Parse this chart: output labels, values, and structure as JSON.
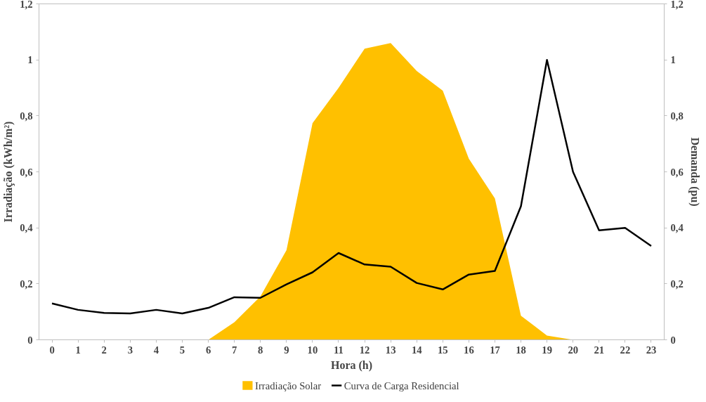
{
  "chart_data": {
    "type": "line",
    "xlabel": "Hora (h)",
    "ylabel": "Irradiação (kWh/m²)",
    "y2label": "Demanda (pu)",
    "x": [
      0,
      1,
      2,
      3,
      4,
      5,
      6,
      7,
      8,
      9,
      10,
      11,
      12,
      13,
      14,
      15,
      16,
      17,
      18,
      19,
      20,
      21,
      22,
      23
    ],
    "xlim": [
      -0.5,
      23.5
    ],
    "xticks": [
      0,
      1,
      2,
      3,
      4,
      5,
      6,
      7,
      8,
      9,
      10,
      11,
      12,
      13,
      14,
      15,
      16,
      17,
      18,
      19,
      20,
      21,
      22,
      23
    ],
    "ylim": [
      0,
      1.2
    ],
    "yticks": [
      0,
      {
        "value": 0.2,
        "label": "0,2"
      },
      {
        "value": 0.4,
        "label": "0,4"
      },
      {
        "value": 0.6,
        "label": "0,6"
      },
      {
        "value": 0.8,
        "label": "0,8"
      },
      1,
      {
        "value": 1.2,
        "label": "1,2"
      }
    ],
    "y2lim": [
      0,
      1.2
    ],
    "y2ticks": [
      0,
      {
        "value": 0.2,
        "label": "0,2"
      },
      {
        "value": 0.4,
        "label": "0,4"
      },
      {
        "value": 0.6,
        "label": "0,6"
      },
      {
        "value": 0.8,
        "label": "0,8"
      },
      1,
      {
        "value": 1.2,
        "label": "1,2"
      }
    ],
    "grid": false,
    "legend": "bottom",
    "series": [
      {
        "name": "Irradiação Solar",
        "type": "area",
        "color": "#ffc000",
        "values": [
          0,
          0,
          0,
          0,
          0,
          0,
          0,
          0.063,
          0.155,
          0.32,
          0.774,
          0.9,
          1.04,
          1.06,
          0.96,
          0.89,
          0.647,
          0.505,
          0.086,
          0.015,
          0,
          0,
          0,
          0
        ]
      },
      {
        "name": "Curva de Carga Residencial",
        "type": "line",
        "axis": "y2",
        "color": "#000000",
        "values": [
          0.13,
          0.107,
          0.096,
          0.094,
          0.107,
          0.094,
          0.114,
          0.152,
          0.15,
          0.198,
          0.241,
          0.31,
          0.269,
          0.261,
          0.203,
          0.18,
          0.233,
          0.246,
          0.477,
          1.0,
          0.6,
          0.391,
          0.4,
          0.335
        ]
      }
    ]
  }
}
